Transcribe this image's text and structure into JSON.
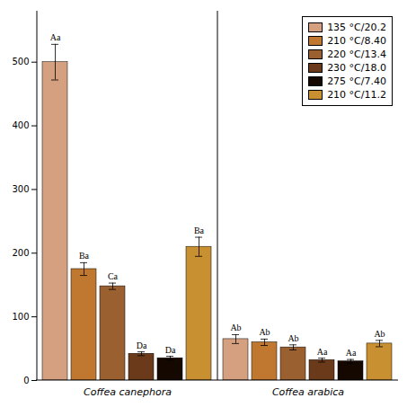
{
  "chart_data": {
    "type": "bar",
    "categories": [
      "Coffea canephora",
      "Coffea arabica"
    ],
    "series": [
      {
        "name": "135 °C/20.2",
        "color": "#D4A080",
        "values": [
          500,
          65
        ],
        "errors": [
          28,
          7
        ],
        "labels": [
          "Aa",
          "Ab"
        ]
      },
      {
        "name": "210 °C/8.40",
        "color": "#C07830",
        "values": [
          175,
          60
        ],
        "errors": [
          10,
          5
        ],
        "labels": [
          "Ba",
          "Ab"
        ]
      },
      {
        "name": "220 °C/13.4",
        "color": "#9B6030",
        "values": [
          148,
          52
        ],
        "errors": [
          5,
          4
        ],
        "labels": [
          "Ca",
          "Ab"
        ]
      },
      {
        "name": "230 °C/18.0",
        "color": "#6B3A1A",
        "values": [
          42,
          32
        ],
        "errors": [
          3,
          3
        ],
        "labels": [
          "Da",
          "Aa"
        ]
      },
      {
        "name": "275 °C/7.40",
        "color": "#150800",
        "values": [
          35,
          30
        ],
        "errors": [
          3,
          3
        ],
        "labels": [
          "Da",
          "Aa"
        ]
      },
      {
        "name": "210 °C/11.2",
        "color": "#C89030",
        "values": [
          210,
          58
        ],
        "errors": [
          15,
          5
        ],
        "labels": [
          "Ba",
          "Ab"
        ]
      }
    ],
    "ylim": [
      0,
      580
    ],
    "yticks": [
      0,
      100,
      200,
      300,
      400,
      500
    ],
    "grid": false,
    "legend": "upper right"
  }
}
